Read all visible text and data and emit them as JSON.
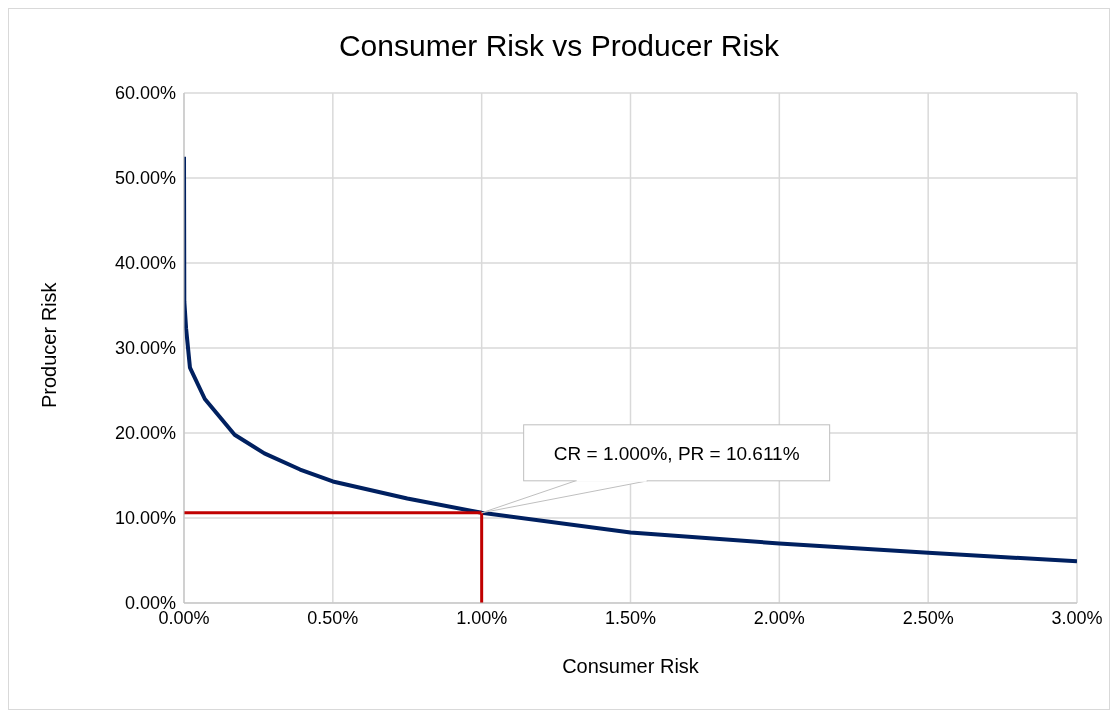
{
  "chart_data": {
    "type": "line",
    "title": "Consumer Risk vs Producer Risk",
    "xlabel": "Consumer Risk",
    "ylabel": "Producer Risk",
    "xlim": [
      0,
      3
    ],
    "xticks": [
      {
        "value": 0,
        "label": "0.00%"
      },
      {
        "value": 0.5,
        "label": "0.50%"
      },
      {
        "value": 1,
        "label": "1.00%"
      },
      {
        "value": 1.5,
        "label": "1.50%"
      },
      {
        "value": 2,
        "label": "2.00%"
      },
      {
        "value": 2.5,
        "label": "2.50%"
      },
      {
        "value": 3,
        "label": "3.00%"
      }
    ],
    "ylim": [
      0,
      60
    ],
    "yticks": [
      {
        "value": 0,
        "label": "0.00%"
      },
      {
        "value": 10,
        "label": "10.00%"
      },
      {
        "value": 20,
        "label": "20.00%"
      },
      {
        "value": 30,
        "label": "30.00%"
      },
      {
        "value": 40,
        "label": "40.00%"
      },
      {
        "value": 50,
        "label": "50.00%"
      },
      {
        "value": 60,
        "label": "60.00%"
      }
    ],
    "grid": true,
    "marker": "none",
    "line_style": "solid",
    "series": [
      {
        "color": "#002060",
        "x": [
          0,
          0.001,
          0.007,
          0.02,
          0.07,
          0.17,
          0.27,
          0.39,
          0.5,
          0.75,
          1,
          1.5,
          2,
          2.5,
          3
        ],
        "values": [
          52.5,
          35.5,
          32.3,
          27.7,
          24,
          19.8,
          17.6,
          15.7,
          14.3,
          12.3,
          10.611,
          8.3,
          7,
          5.9,
          4.9
        ]
      },
      {
        "color": "#c00000",
        "x": [
          0,
          1
        ],
        "values": [
          10.611,
          10.611
        ]
      },
      {
        "color": "#c00000",
        "x": [
          1,
          1
        ],
        "values": [
          0,
          10.611
        ]
      }
    ],
    "annotations": [
      {
        "text": "CR = 1.000%, PR = 10.611%",
        "x": 1,
        "y": 10.611
      }
    ]
  }
}
